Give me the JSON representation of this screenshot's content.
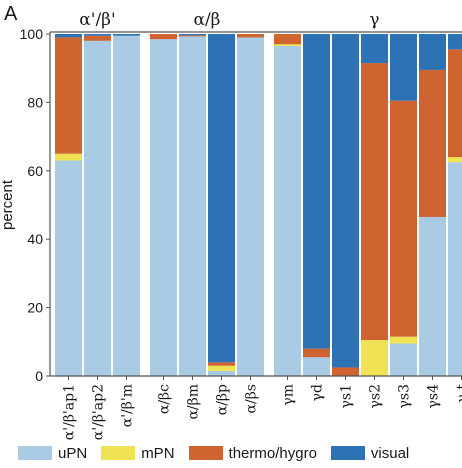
{
  "chart_data": {
    "type": "bar",
    "stacked": true,
    "panel_label": "A",
    "ylabel": "percent",
    "ylim": [
      0,
      100
    ],
    "yticks": [
      0,
      20,
      40,
      60,
      80,
      100
    ],
    "grid": false,
    "legend_position": "bottom",
    "groups": [
      {
        "label": "α'/β'",
        "categories": [
          "α'/β'ap1",
          "α'/β'ap2",
          "α'/β'm"
        ]
      },
      {
        "label": "α/β",
        "categories": [
          "α/βc",
          "α/βm",
          "α/βp",
          "α/βs"
        ]
      },
      {
        "label": "γ",
        "categories": [
          "γm",
          "γd",
          "γs1",
          "γs2",
          "γs3",
          "γs4",
          "γ-t"
        ]
      }
    ],
    "categories": [
      "α'/β'ap1",
      "α'/β'ap2",
      "α'/β'm",
      "α/βc",
      "α/βm",
      "α/βp",
      "α/βs",
      "γm",
      "γd",
      "γs1",
      "γs2",
      "γs3",
      "γs4",
      "γ-t"
    ],
    "series": [
      {
        "name": "uPN",
        "color": "#a9cbe4",
        "values": [
          63,
          98,
          99.5,
          98.5,
          99.3,
          1.5,
          99,
          96.5,
          5.5,
          0,
          0,
          9.5,
          46.5,
          62.5
        ]
      },
      {
        "name": "mPN",
        "color": "#f0e353",
        "values": [
          2,
          0,
          0,
          0,
          0,
          1.5,
          0,
          0.5,
          0,
          0,
          10.5,
          2,
          0,
          1.5
        ]
      },
      {
        "name": "thermo/hygro",
        "color": "#cf6431",
        "values": [
          34,
          1.5,
          0,
          1.5,
          0.3,
          1,
          1,
          3,
          2.5,
          2.5,
          81,
          69,
          43,
          31.5
        ]
      },
      {
        "name": "visual",
        "color": "#2d72b4",
        "values": [
          1,
          0.5,
          0.5,
          0,
          0.4,
          96,
          0,
          0,
          92,
          97.5,
          8.5,
          19.5,
          10.5,
          4.5
        ]
      }
    ]
  }
}
